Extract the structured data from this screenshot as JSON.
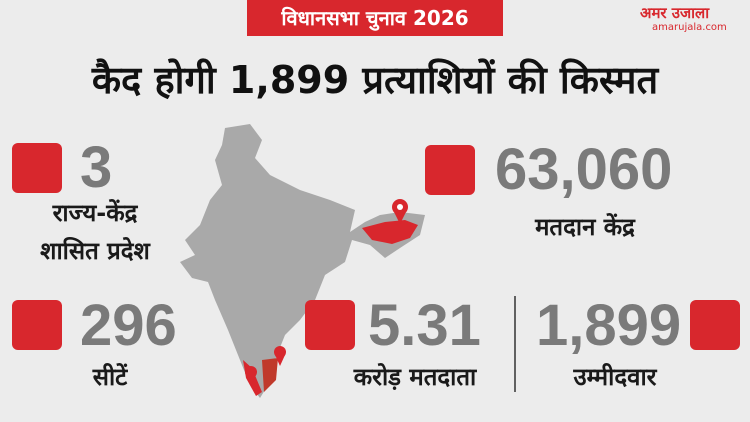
{
  "header": {
    "badge": "विधानसभा चुनाव 2026",
    "logo": "अमर उजाला",
    "site": "amarujala.com"
  },
  "title": "कैद होगी 1,899 प्रत्याशियों की किस्मत",
  "stats": [
    {
      "value": "3",
      "label_lines": [
        "राज्य-केंद्र",
        "शासित प्रदेश"
      ]
    },
    {
      "value": "63,060",
      "label_lines": [
        "मतदान केंद्र"
      ]
    },
    {
      "value": "296",
      "label_lines": [
        "सीटें"
      ]
    },
    {
      "value": "5.31",
      "label_lines": [
        "करोड़ मतदाता"
      ]
    },
    {
      "value": "1,899",
      "label_lines": [
        "उम्मीदवार"
      ]
    }
  ]
}
